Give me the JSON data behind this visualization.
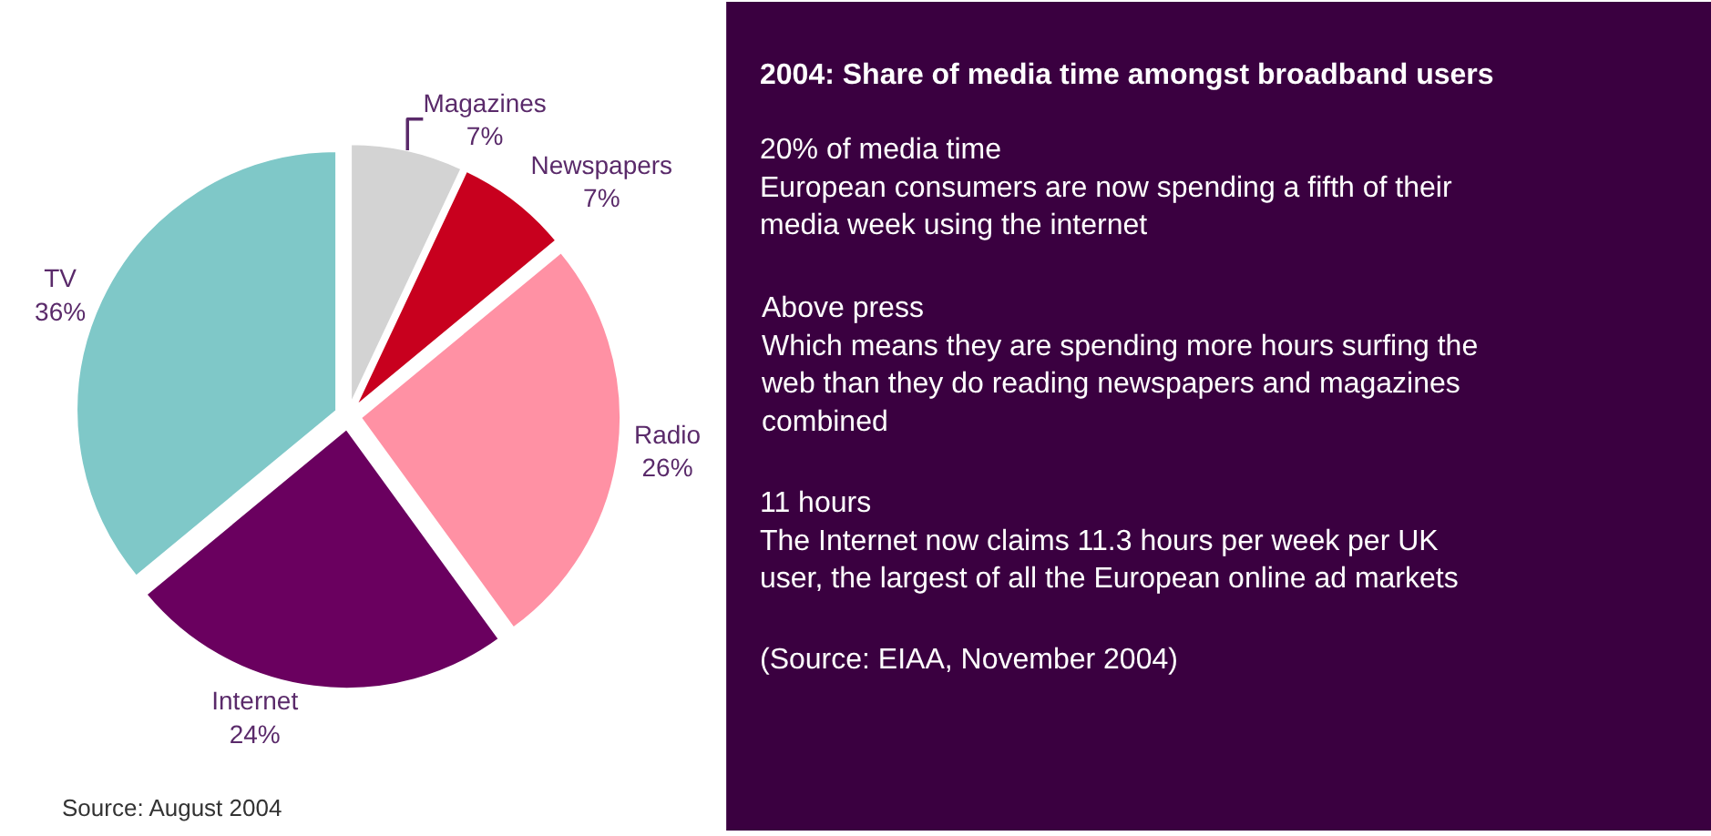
{
  "chart_data": [
    {
      "type": "pie",
      "categories": [
        "Magazines",
        "Newspapers",
        "Radio",
        "Internet",
        "TV"
      ],
      "values": [
        7,
        7,
        26,
        24,
        36
      ],
      "value_labels": [
        "7%",
        "7%",
        "26%",
        "24%",
        "36%"
      ],
      "colors": [
        "#d3d3d3",
        "#c8001e",
        "#ff91a4",
        "#6a005f",
        "#7fc8c8"
      ],
      "annotations": [
        "Source: August 2004"
      ]
    },
    {
      "type": "other",
      "title": "2004: Share of media time amongst broadband users",
      "annotations": [
        "20% of media time\nEuropean consumers are now spending a fifth of their\nmedia week using the internet",
        "Above press\nWhich means they are spending more hours surfing the\nweb than they do reading newspapers and magazines\ncombined",
        "11 hours\nThe Internet now claims 11.3 hours per week per UK\nuser, the largest of all the European online ad markets",
        "(Source: EIAA, November 2004)"
      ]
    }
  ]
}
